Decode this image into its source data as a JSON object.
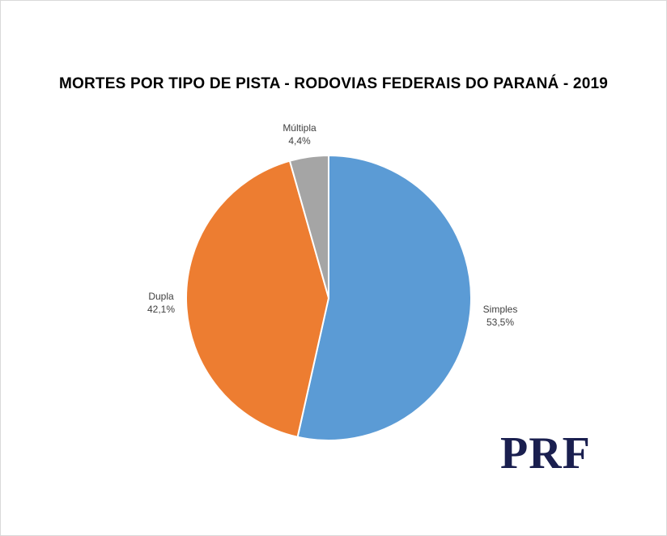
{
  "chart_data": {
    "type": "pie",
    "title": "MORTES POR TIPO DE PISTA - RODOVIAS FEDERAIS DO PARANÁ - 2019",
    "slices": [
      {
        "name": "Simples",
        "value": 53.5,
        "label": "53,5%",
        "color": "#5b9bd5"
      },
      {
        "name": "Dupla",
        "value": 42.1,
        "label": "42,1%",
        "color": "#ed7d31"
      },
      {
        "name": "Múltipla",
        "value": 4.4,
        "label": "4,4%",
        "color": "#a5a5a5"
      }
    ]
  },
  "logo": {
    "text": "PRF",
    "color": "#1a1f4f"
  }
}
